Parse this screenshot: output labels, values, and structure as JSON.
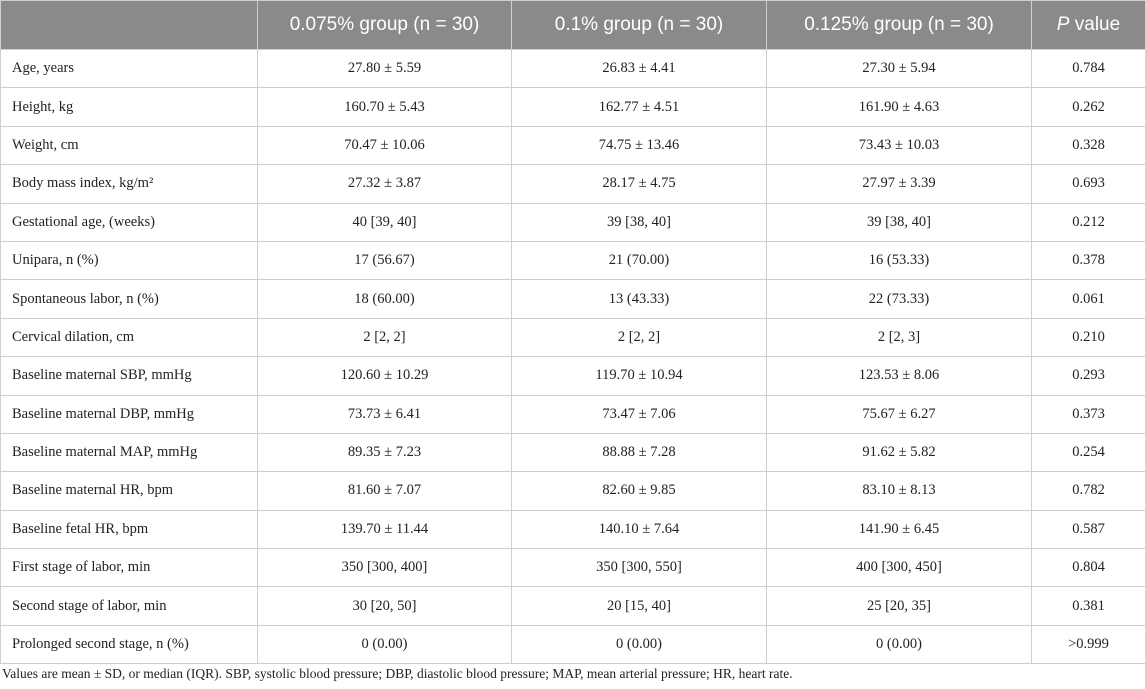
{
  "table": {
    "headers": [
      "",
      "0.075% group (n = 30)",
      "0.1% group (n = 30)",
      "0.125% group (n = 30)"
    ],
    "pvalue_header": {
      "italic": "P",
      "rest": " value"
    },
    "rows": [
      {
        "label": "Age, years",
        "g1": "27.80 ± 5.59",
        "g2": "26.83 ± 4.41",
        "g3": "27.30 ± 5.94",
        "p": "0.784"
      },
      {
        "label": "Height, kg",
        "g1": "160.70 ± 5.43",
        "g2": "162.77 ± 4.51",
        "g3": "161.90 ± 4.63",
        "p": "0.262"
      },
      {
        "label": "Weight, cm",
        "g1": "70.47 ± 10.06",
        "g2": "74.75 ± 13.46",
        "g3": "73.43 ± 10.03",
        "p": "0.328"
      },
      {
        "label": "Body mass index, kg/m²",
        "g1": "27.32 ± 3.87",
        "g2": "28.17 ± 4.75",
        "g3": "27.97 ± 3.39",
        "p": "0.693"
      },
      {
        "label": "Gestational age, (weeks)",
        "g1": "40 [39, 40]",
        "g2": "39 [38, 40]",
        "g3": "39 [38, 40]",
        "p": "0.212"
      },
      {
        "label": "Unipara, n (%)",
        "g1": "17 (56.67)",
        "g2": "21 (70.00)",
        "g3": "16 (53.33)",
        "p": "0.378"
      },
      {
        "label": "Spontaneous labor, n (%)",
        "g1": "18 (60.00)",
        "g2": "13 (43.33)",
        "g3": "22 (73.33)",
        "p": "0.061"
      },
      {
        "label": "Cervical dilation, cm",
        "g1": "2 [2, 2]",
        "g2": "2 [2, 2]",
        "g3": "2 [2, 3]",
        "p": "0.210"
      },
      {
        "label": "Baseline maternal SBP, mmHg",
        "g1": "120.60 ± 10.29",
        "g2": "119.70 ± 10.94",
        "g3": "123.53 ± 8.06",
        "p": "0.293"
      },
      {
        "label": "Baseline maternal DBP, mmHg",
        "g1": "73.73 ± 6.41",
        "g2": "73.47 ± 7.06",
        "g3": "75.67 ± 6.27",
        "p": "0.373"
      },
      {
        "label": "Baseline maternal MAP, mmHg",
        "g1": "89.35 ± 7.23",
        "g2": "88.88 ± 7.28",
        "g3": "91.62 ± 5.82",
        "p": "0.254"
      },
      {
        "label": "Baseline maternal HR, bpm",
        "g1": "81.60 ± 7.07",
        "g2": "82.60 ± 9.85",
        "g3": "83.10 ± 8.13",
        "p": "0.782"
      },
      {
        "label": "Baseline fetal HR, bpm",
        "g1": "139.70 ± 11.44",
        "g2": "140.10 ± 7.64",
        "g3": "141.90 ± 6.45",
        "p": "0.587"
      },
      {
        "label": "First stage of labor, min",
        "g1": "350 [300, 400]",
        "g2": "350 [300, 550]",
        "g3": "400 [300, 450]",
        "p": "0.804"
      },
      {
        "label": "Second stage of labor, min",
        "g1": "30 [20, 50]",
        "g2": "20 [15, 40]",
        "g3": "25 [20, 35]",
        "p": "0.381"
      },
      {
        "label": "Prolonged second stage, n (%)",
        "g1": "0 (0.00)",
        "g2": "0 (0.00)",
        "g3": "0 (0.00)",
        "p": ">0.999"
      }
    ]
  },
  "footnote": "Values are mean ± SD, or median (IQR). SBP, systolic blood pressure; DBP, diastolic blood pressure; MAP, mean arterial pressure; HR, heart rate."
}
